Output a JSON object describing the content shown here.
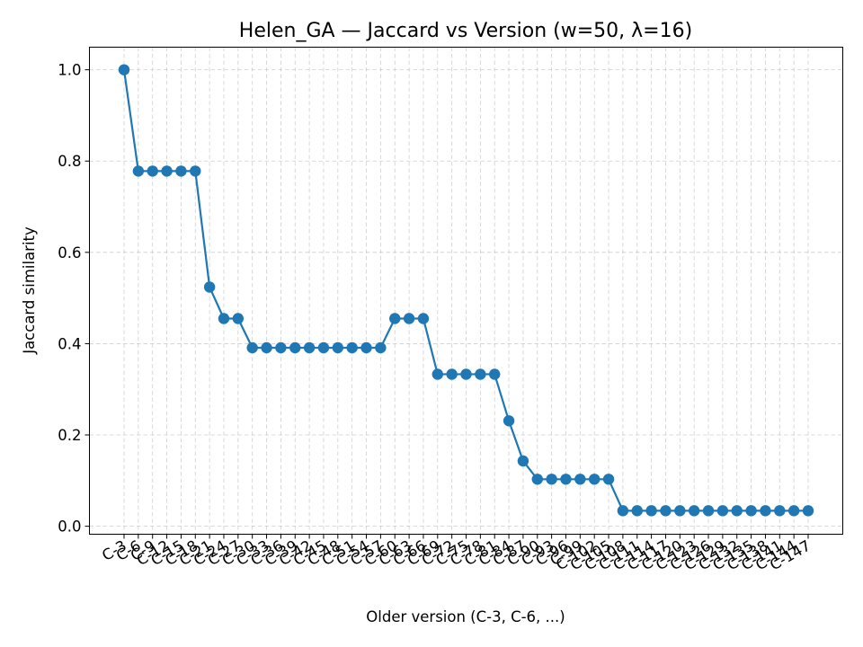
{
  "chart_data": {
    "type": "line",
    "title": "Helen_GA — Jaccard vs Version (w=50, λ=16)",
    "xlabel": "Older version (C-3, C-6, ...)",
    "ylabel": "Jaccard similarity",
    "ylim": [
      -0.0175,
      1.0495
    ],
    "yticks": [
      "0.0",
      "0.2",
      "0.4",
      "0.6",
      "0.8",
      "1.0"
    ],
    "grid": true,
    "colors": {
      "series": "#1f77b4"
    },
    "categories": [
      "C-3",
      "C-6",
      "C-9",
      "C-12",
      "C-15",
      "C-18",
      "C-21",
      "C-24",
      "C-27",
      "C-30",
      "C-33",
      "C-36",
      "C-39",
      "C-42",
      "C-45",
      "C-48",
      "C-51",
      "C-54",
      "C-57",
      "C-60",
      "C-63",
      "C-66",
      "C-69",
      "C-72",
      "C-75",
      "C-78",
      "C-81",
      "C-84",
      "C-87",
      "C-90",
      "C-93",
      "C-96",
      "C-99",
      "C-102",
      "C-105",
      "C-108",
      "C-111",
      "C-114",
      "C-117",
      "C-120",
      "C-123",
      "C-126",
      "C-129",
      "C-132",
      "C-135",
      "C-138",
      "C-141",
      "C-144",
      "C-147"
    ],
    "series": [
      {
        "values": [
          1.0,
          0.778,
          0.778,
          0.778,
          0.778,
          0.778,
          0.524,
          0.455,
          0.455,
          0.391,
          0.391,
          0.391,
          0.391,
          0.391,
          0.391,
          0.391,
          0.391,
          0.391,
          0.391,
          0.455,
          0.455,
          0.455,
          0.333,
          0.333,
          0.333,
          0.333,
          0.333,
          0.231,
          0.143,
          0.103,
          0.103,
          0.103,
          0.103,
          0.103,
          0.103,
          0.034,
          0.034,
          0.034,
          0.034,
          0.034,
          0.034,
          0.034,
          0.034,
          0.034,
          0.034,
          0.034,
          0.034,
          0.034,
          0.034
        ]
      }
    ]
  }
}
